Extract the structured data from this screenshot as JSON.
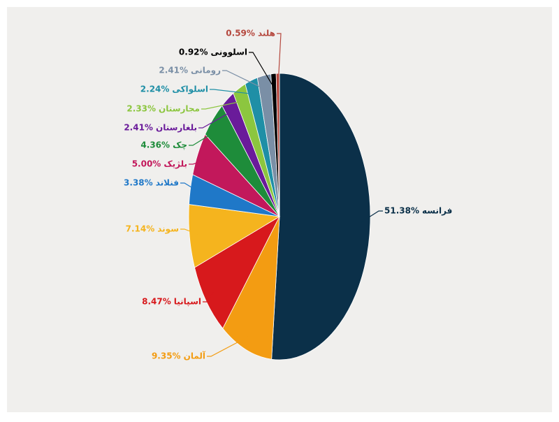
{
  "chart_data": {
    "type": "pie",
    "categories": [
      "فرانسه",
      "آلمان",
      "اسپانیا",
      "سوند",
      "فنلاند",
      "بلژیک",
      "چک",
      "بلغارستان",
      "مجارستان",
      "اسلواکی",
      "رومانی",
      "اسلوونی",
      "هلند"
    ],
    "values": [
      51.38,
      9.35,
      8.47,
      7.14,
      3.38,
      5.0,
      4.36,
      2.41,
      2.33,
      2.24,
      2.41,
      0.92,
      0.59
    ],
    "value_labels": [
      "51.38%",
      "9.35%",
      "8.47%",
      "7.14%",
      "3.38%",
      "5.00%",
      "4.36%",
      "2.41%",
      "2.33%",
      "2.24%",
      "2.41%",
      "0.92%",
      "0.59%"
    ],
    "colors": [
      "#0b3049",
      "#f39c12",
      "#d7191c",
      "#f5b41e",
      "#1f78c8",
      "#c2185b",
      "#1e8c3a",
      "#6a1b9a",
      "#8cc63f",
      "#1f8fa6",
      "#7a8fa6",
      "#000000",
      "#b5483e"
    ]
  }
}
